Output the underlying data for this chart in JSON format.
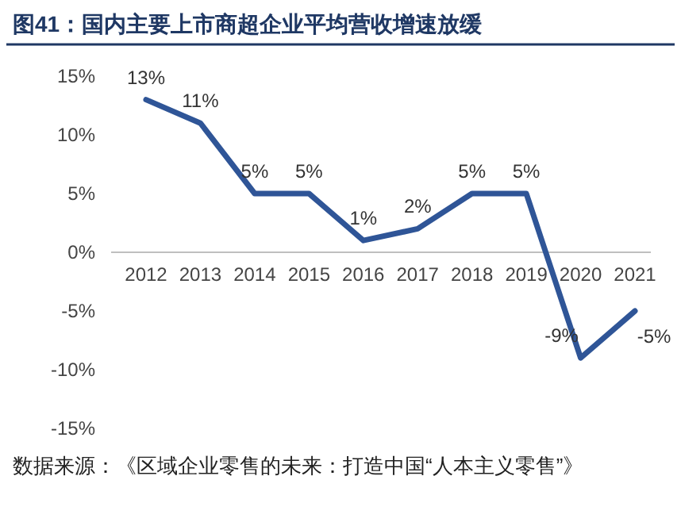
{
  "chart_data": {
    "type": "line",
    "title": "图41：国内主要上市商超企业平均营收增速放缓",
    "categories": [
      "2012",
      "2013",
      "2014",
      "2015",
      "2016",
      "2017",
      "2018",
      "2019",
      "2020",
      "2021"
    ],
    "series": [
      {
        "color": "#2f5597",
        "values": [
          13,
          11,
          5,
          5,
          1,
          2,
          5,
          5,
          -9,
          -5
        ],
        "value_labels": [
          "13%",
          "11%",
          "5%",
          "5%",
          "1%",
          "2%",
          "5%",
          "5%",
          "-9%",
          "-5%"
        ]
      }
    ],
    "ylim": [
      -15,
      15
    ],
    "yticks": [
      {
        "value": -15,
        "label": "-15%"
      },
      {
        "value": -10,
        "label": "-10%"
      },
      {
        "value": -5,
        "label": "-5%"
      },
      {
        "value": 0,
        "label": "0%"
      },
      {
        "value": 5,
        "label": "5%"
      },
      {
        "value": 10,
        "label": "10%"
      },
      {
        "value": 15,
        "label": "15%"
      }
    ],
    "grid": false,
    "marker": "none",
    "line_style": "solid",
    "annotations": [
      "数据来源：《区域企业零售的未来：打造中国“人本主义零售”》"
    ]
  }
}
